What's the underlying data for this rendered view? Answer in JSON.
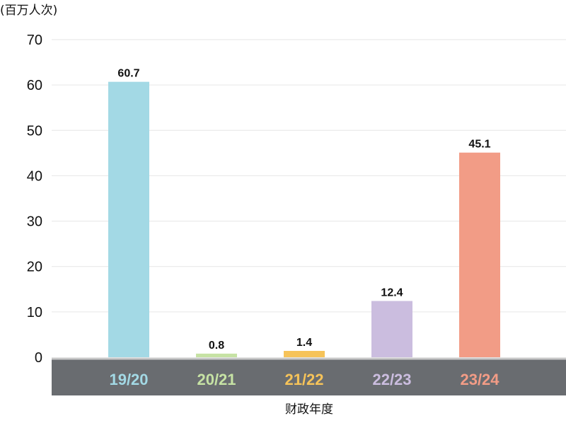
{
  "chart_data": {
    "type": "bar",
    "unit_label": "(百万人次)",
    "xlabel": "财政年度",
    "ylabel": "",
    "ylim": [
      0,
      70
    ],
    "yticks": [
      0,
      10,
      20,
      30,
      40,
      50,
      60,
      70
    ],
    "categories": [
      "19/20",
      "20/21",
      "21/22",
      "22/23",
      "23/24"
    ],
    "values": [
      60.7,
      0.8,
      1.4,
      12.4,
      45.1
    ],
    "value_labels": [
      "60.7",
      "0.8",
      "1.4",
      "12.4",
      "45.1"
    ],
    "colors": [
      "#a3d9e5",
      "#c6e2a4",
      "#f6c359",
      "#cbbddf",
      "#f29c86"
    ],
    "category_band_color": "#696c70",
    "grid": true
  }
}
